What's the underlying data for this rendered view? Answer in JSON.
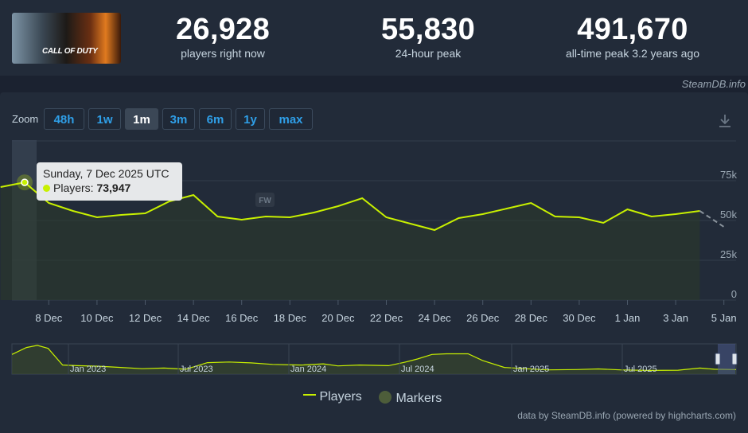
{
  "game": {
    "logo_text": "CALL OF DUTY"
  },
  "stats": [
    {
      "value": "26,928",
      "label": "players right now"
    },
    {
      "value": "55,830",
      "label": "24-hour peak"
    },
    {
      "value": "491,670",
      "label": "all-time peak 3.2 years ago"
    }
  ],
  "credit_top": "SteamDB.info",
  "zoom": {
    "label": "Zoom",
    "buttons": [
      "48h",
      "1w",
      "1m",
      "3m",
      "6m",
      "1y",
      "max"
    ],
    "active": "1m"
  },
  "tooltip": {
    "date": "Sunday, 7 Dec 2025 UTC",
    "series_label": "Players:",
    "value": "73,947"
  },
  "marker_label": "FW",
  "navigator": {
    "labels": [
      "Jan 2023",
      "Jul 2023",
      "Jan 2024",
      "Jul 2024",
      "Jan 2025",
      "Jul 2025"
    ]
  },
  "legend": {
    "players": "Players",
    "markers": "Markers"
  },
  "credit_bottom": "data by SteamDB.info (powered by highcharts.com)",
  "colors": {
    "line": "#c8f000",
    "background": "#1b2230",
    "panel": "#222b39",
    "accent": "#2f9fe8"
  },
  "chart_data": {
    "type": "line",
    "x_tick_labels": [
      "8 Dec",
      "10 Dec",
      "12 Dec",
      "14 Dec",
      "16 Dec",
      "18 Dec",
      "20 Dec",
      "22 Dec",
      "24 Dec",
      "26 Dec",
      "28 Dec",
      "30 Dec",
      "1 Jan",
      "3 Jan",
      "5 Jan"
    ],
    "y_tick_labels": [
      "0",
      "25k",
      "50k",
      "75k"
    ],
    "ylim": [
      0,
      100000
    ],
    "series": [
      {
        "name": "Players",
        "x": [
          "6 Dec",
          "7 Dec",
          "8 Dec",
          "9 Dec",
          "10 Dec",
          "11 Dec",
          "12 Dec",
          "13 Dec",
          "14 Dec",
          "15 Dec",
          "16 Dec",
          "17 Dec",
          "18 Dec",
          "19 Dec",
          "20 Dec",
          "21 Dec",
          "22 Dec",
          "23 Dec",
          "24 Dec",
          "25 Dec",
          "26 Dec",
          "27 Dec",
          "28 Dec",
          "29 Dec",
          "30 Dec",
          "31 Dec",
          "1 Jan",
          "2 Jan",
          "3 Jan",
          "4 Jan"
        ],
        "values": [
          71000,
          73947,
          61000,
          56000,
          52000,
          53500,
          54500,
          62000,
          66000,
          52500,
          50500,
          52500,
          52000,
          55000,
          59000,
          64000,
          52000,
          48000,
          44000,
          51500,
          54000,
          57500,
          61000,
          52500,
          52000,
          48500,
          57000,
          52500,
          54000,
          56000
        ]
      }
    ],
    "partial_point": {
      "x": "5 Jan",
      "value": 46000
    },
    "grid": true,
    "legend_position": "bottom-center"
  }
}
